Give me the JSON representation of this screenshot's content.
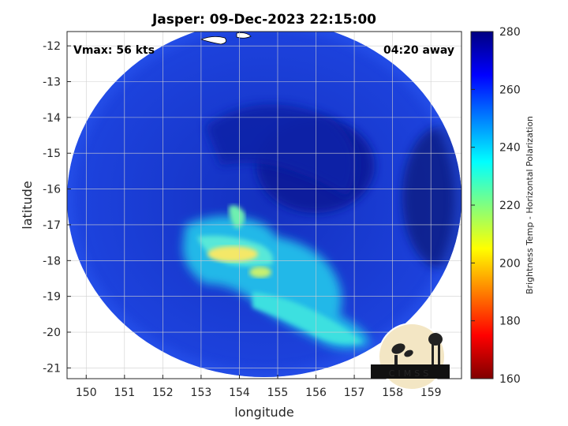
{
  "title": "Jasper: 09-Dec-2023 22:15:00",
  "vmax_label": "Vmax: 56 kts",
  "time_away_label": "04:20 away",
  "axes": {
    "xlabel": "longitude",
    "ylabel": "latitude",
    "x_ticks": [
      "150",
      "151",
      "152",
      "153",
      "154",
      "155",
      "156",
      "157",
      "158",
      "159"
    ],
    "y_ticks": [
      "-12",
      "-13",
      "-14",
      "-15",
      "-16",
      "-17",
      "-18",
      "-19",
      "-20",
      "-21"
    ],
    "xlim": [
      149.5,
      159.8
    ],
    "ylim": [
      -21.3,
      -11.6
    ]
  },
  "colorbar": {
    "label": "Brightness Temp - Horizontal Polarization",
    "ticks": [
      "280",
      "260",
      "240",
      "220",
      "200",
      "180",
      "160"
    ],
    "range": [
      160,
      280
    ],
    "colormap": "jet"
  },
  "logo": {
    "text": "CIMSS"
  },
  "colors": {
    "background_blue": "#1a3cdc",
    "eye_dark_blue": "#0d1f9a",
    "rainband_cyan": "#40e0e6",
    "rainband_yellow": "#ffe84a",
    "coast_outline": "#ffffff"
  }
}
